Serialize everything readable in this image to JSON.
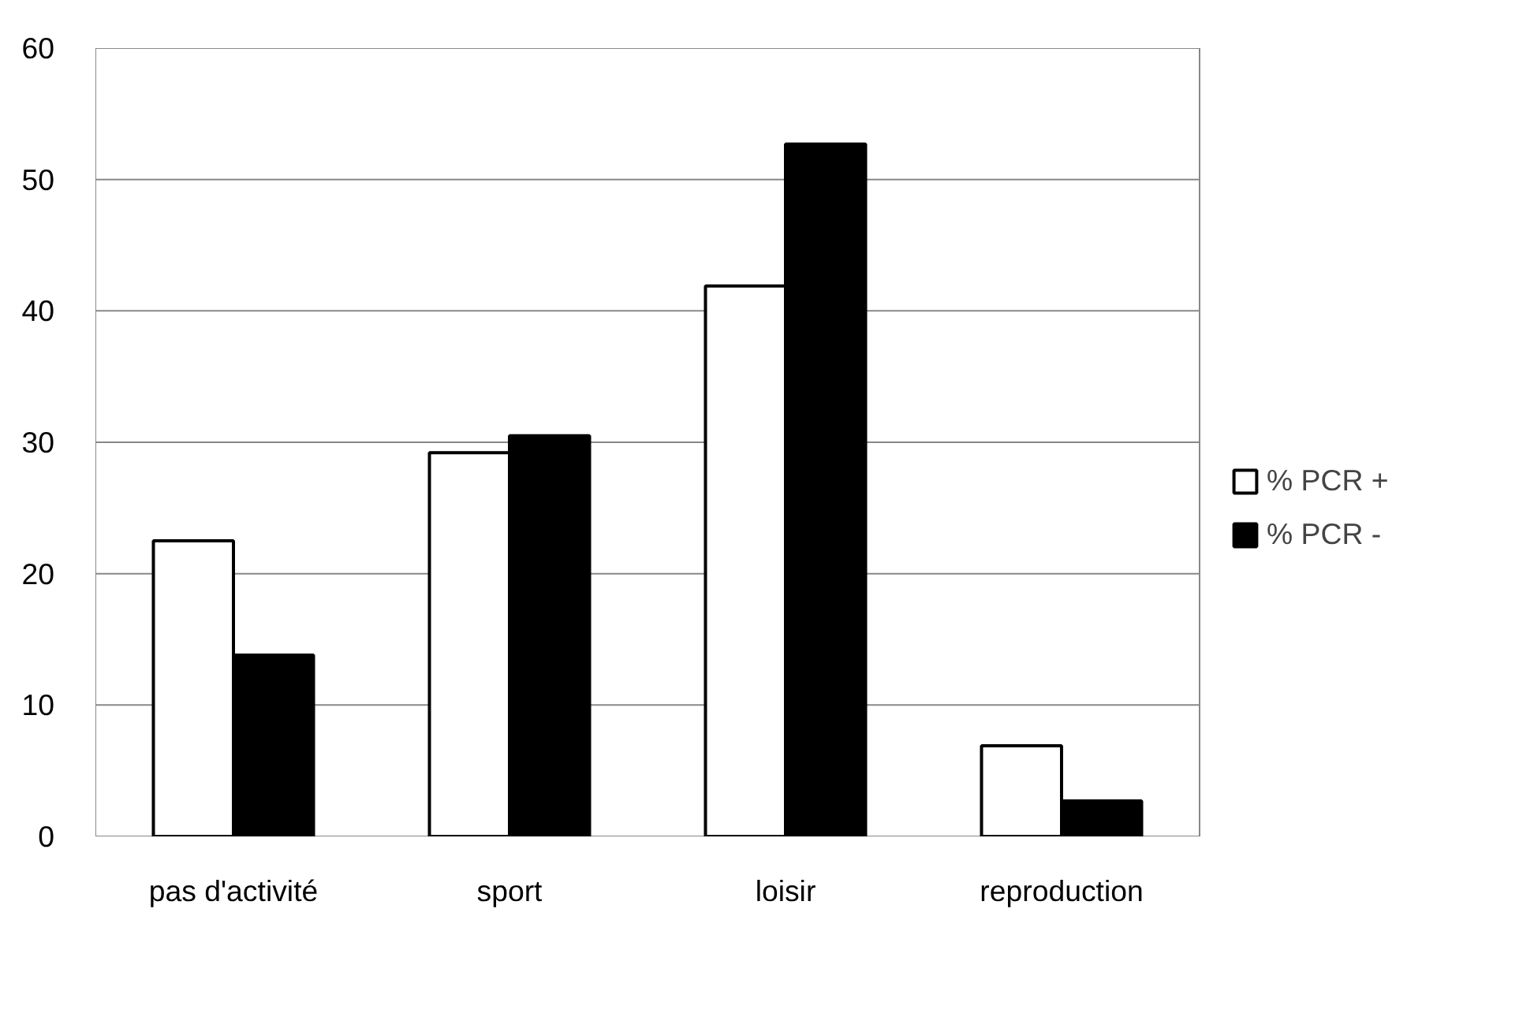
{
  "chart_data": {
    "type": "bar",
    "categories": [
      "pas d'activité",
      "sport",
      "loisir",
      "reproduction"
    ],
    "series": [
      {
        "name": "% PCR +",
        "color": "#ffffff",
        "values": [
          22.5,
          29.2,
          41.9,
          6.9
        ]
      },
      {
        "name": "% PCR -",
        "color": "#000000",
        "values": [
          13.8,
          30.5,
          52.7,
          2.7
        ]
      }
    ],
    "ylim": [
      0,
      60
    ],
    "yticks": [
      0,
      10,
      20,
      30,
      40,
      50,
      60
    ],
    "grid": "y",
    "legend": "right"
  }
}
